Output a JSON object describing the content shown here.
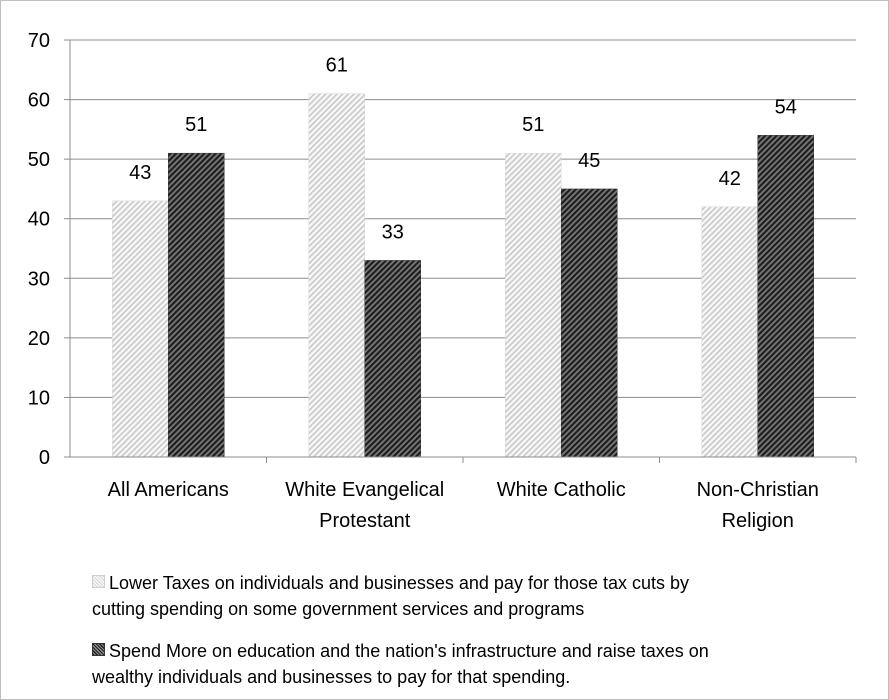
{
  "chart_data": {
    "type": "bar",
    "title": "",
    "xlabel": "",
    "ylabel": "",
    "ylim": [
      0,
      70
    ],
    "yticks": [
      0,
      10,
      20,
      30,
      40,
      50,
      60,
      70
    ],
    "grid": true,
    "legend_position": "bottom",
    "categories": [
      [
        "All Americans"
      ],
      [
        "White Evangelical",
        "Protestant"
      ],
      [
        "White Catholic"
      ],
      [
        "Non-Christian",
        "Religion"
      ]
    ],
    "series": [
      {
        "name": "Lower Taxes on individuals and businesses and pay for those tax cuts by cutting spending on some government services and programs",
        "legend_lines": [
          "Lower Taxes on individuals and businesses and pay for those tax cuts by",
          "cutting spending on some government services and programs"
        ],
        "pattern": "light",
        "values": [
          43,
          61,
          51,
          42
        ]
      },
      {
        "name": "Spend More on education and the nation's infrastructure and raise taxes on wealthy individuals and businesses to pay for that spending.",
        "legend_lines": [
          "Spend More on education and the nation's infrastructure and raise taxes on",
          "wealthy individuals and businesses to pay for that spending."
        ],
        "pattern": "dark",
        "values": [
          51,
          33,
          45,
          54
        ]
      }
    ],
    "colors": {
      "gridline": "#8c8c8c",
      "axis": "#8c8c8c",
      "light_bar": "#e6e6e6",
      "dark_bar": "#3a3a3a"
    }
  }
}
